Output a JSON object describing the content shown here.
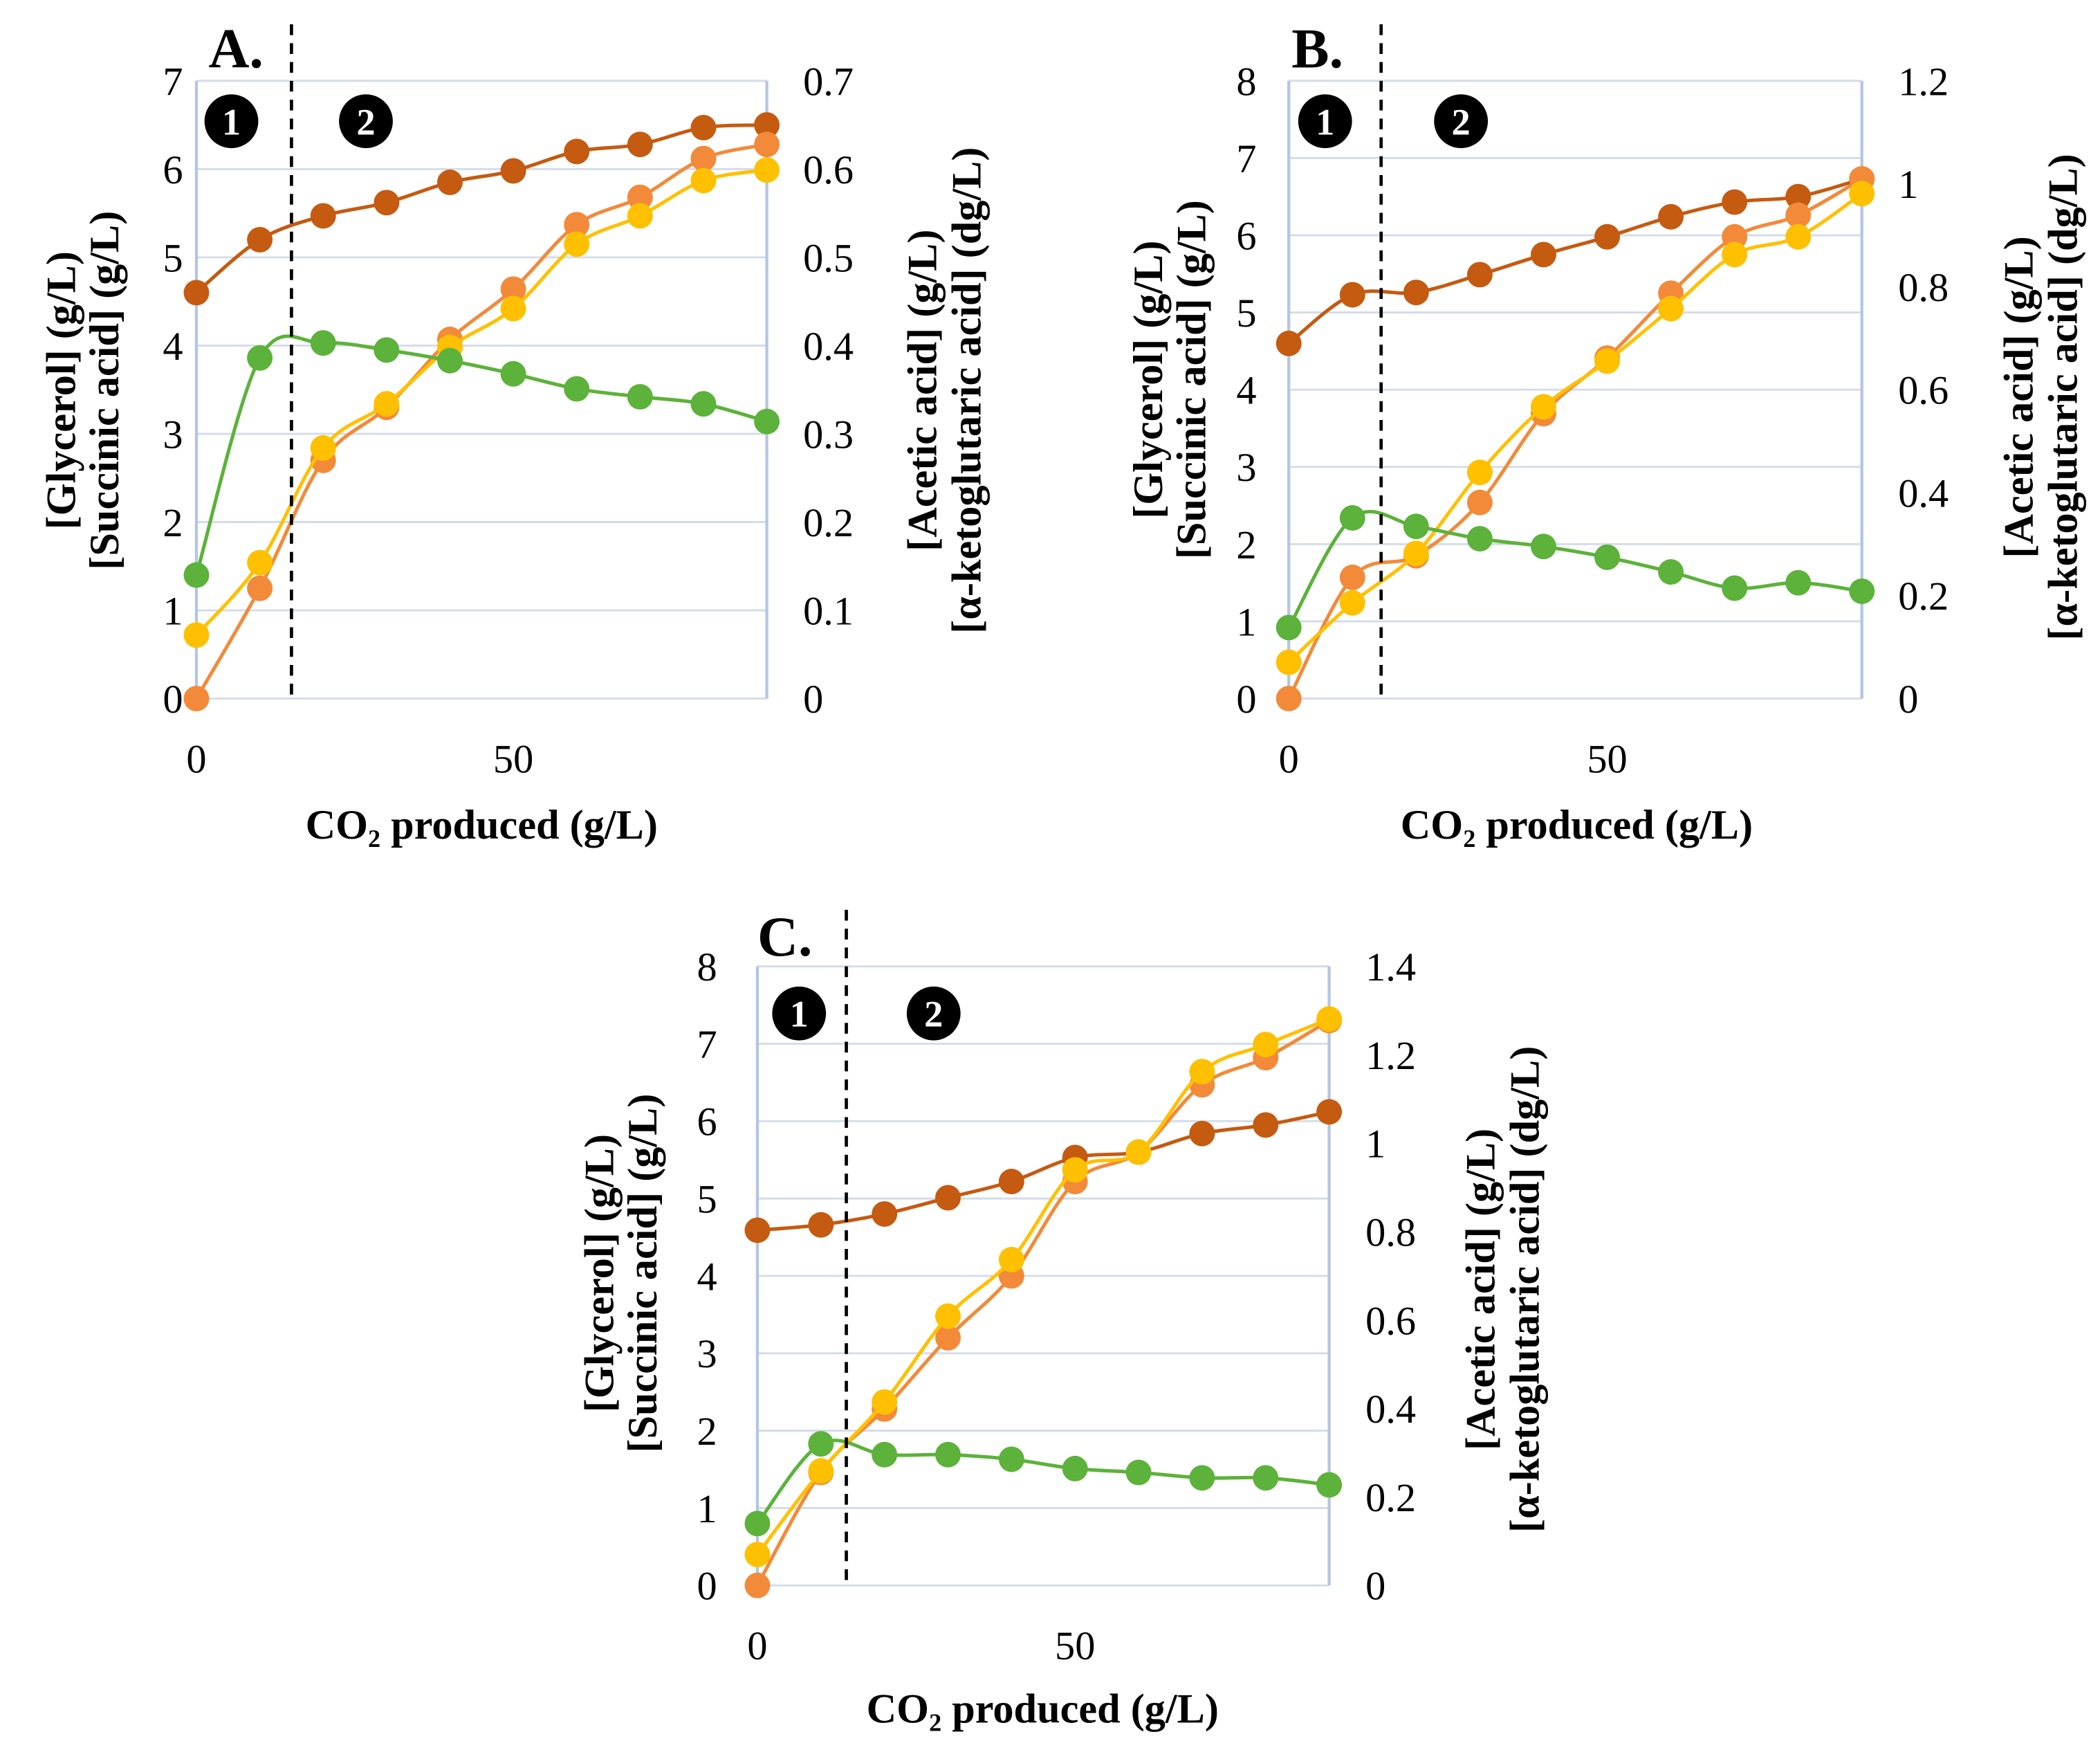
{
  "chart_data": [
    {
      "type": "line",
      "title": "A.",
      "x": [
        0,
        10,
        20,
        30,
        40,
        50,
        60,
        70,
        80,
        90
      ],
      "xlim": [
        0,
        90
      ],
      "xticks": [
        0,
        50
      ],
      "xlabel": "CO₂ produced (g/L)",
      "ylim": [
        0,
        7
      ],
      "yticks": [
        0,
        1,
        2,
        3,
        4,
        5,
        6,
        7
      ],
      "ylabel": [
        "[Glycerol] (g/L)",
        "[Succinic acid] (g/L)"
      ],
      "y2lim": [
        0,
        0.7
      ],
      "y2ticks": [
        0,
        0.1,
        0.2,
        0.3,
        0.4,
        0.5,
        0.6,
        0.7
      ],
      "y2label": [
        "[Acetic acid] (g/L)",
        "[α-ketoglutaric acid] (dg/L)"
      ],
      "phase_boundary_x": 15,
      "phase_labels": [
        "1",
        "2"
      ],
      "series": [
        {
          "color": "#c55a11",
          "values": [
            4.6,
            5.2,
            5.47,
            5.62,
            5.85,
            5.98,
            6.2,
            6.28,
            6.47,
            6.5
          ]
        },
        {
          "color": "#f28a3a",
          "values": [
            0,
            1.25,
            2.7,
            3.3,
            4.07,
            4.64,
            5.37,
            5.68,
            6.12,
            6.28
          ]
        },
        {
          "color": "#ffc000",
          "values": [
            0.72,
            1.54,
            2.84,
            3.34,
            3.98,
            4.42,
            5.15,
            5.47,
            5.87,
            5.99
          ]
        },
        {
          "color": "#5cb23a",
          "values": [
            1.4,
            3.86,
            4.03,
            3.95,
            3.83,
            3.68,
            3.51,
            3.42,
            3.34,
            3.14
          ]
        }
      ]
    },
    {
      "type": "line",
      "title": "B.",
      "x": [
        0,
        10,
        20,
        30,
        40,
        50,
        60,
        70,
        80,
        90
      ],
      "xlim": [
        0,
        90
      ],
      "xticks": [
        0,
        50
      ],
      "xlabel": "CO₂ produced (g/L)",
      "ylim": [
        0,
        8
      ],
      "yticks": [
        0,
        1,
        2,
        3,
        4,
        5,
        6,
        7,
        8
      ],
      "ylabel": [
        "[Glycerol] (g/L)",
        "[Succinic acid] (g/L)"
      ],
      "y2lim": [
        0,
        1.2
      ],
      "y2ticks": [
        0,
        0.2,
        0.4,
        0.6,
        0.8,
        1,
        1.2
      ],
      "y2label": [
        "[Acetic acid] (g/L)",
        "[α-ketoglutaric acid] (dg/L)"
      ],
      "phase_boundary_x": 14.5,
      "phase_labels": [
        "1",
        "2"
      ],
      "series": [
        {
          "color": "#c55a11",
          "values": [
            4.6,
            5.23,
            5.26,
            5.49,
            5.75,
            5.98,
            6.24,
            6.43,
            6.5,
            6.73
          ]
        },
        {
          "color": "#f28a3a",
          "values": [
            0,
            1.57,
            1.85,
            2.54,
            3.69,
            4.41,
            5.25,
            5.98,
            6.26,
            6.73
          ]
        },
        {
          "color": "#ffc000",
          "values": [
            0.47,
            1.24,
            1.88,
            2.93,
            3.78,
            4.37,
            5.05,
            5.75,
            5.98,
            6.54
          ]
        },
        {
          "color": "#5cb23a",
          "values": [
            0.92,
            2.34,
            2.23,
            2.07,
            1.97,
            1.83,
            1.64,
            1.43,
            1.5,
            1.39
          ]
        }
      ]
    },
    {
      "type": "line",
      "title": "C.",
      "x": [
        0,
        10,
        20,
        30,
        40,
        50,
        60,
        70,
        80,
        90
      ],
      "xlim": [
        0,
        90
      ],
      "xticks": [
        0,
        50
      ],
      "xlabel": "CO₂ produced (g/L)",
      "ylim": [
        0,
        8
      ],
      "yticks": [
        0,
        1,
        2,
        3,
        4,
        5,
        6,
        7,
        8
      ],
      "ylabel": [
        "[Glycerol] (g/L)",
        "[Succinic acid] (g/L)"
      ],
      "y2lim": [
        0,
        1.4
      ],
      "y2ticks": [
        0,
        0.2,
        0.4,
        0.6,
        0.8,
        1,
        1.2,
        1.4
      ],
      "y2label": [
        "[Acetic acid] (g/L)",
        "[α-ketoglutaric acid] (dg/L)"
      ],
      "phase_boundary_x": 14,
      "phase_labels": [
        "1",
        "2"
      ],
      "series": [
        {
          "color": "#c55a11",
          "values": [
            4.59,
            4.66,
            4.8,
            5.01,
            5.22,
            5.53,
            5.6,
            5.84,
            5.95,
            6.12
          ]
        },
        {
          "color": "#f28a3a",
          "values": [
            0,
            1.46,
            2.28,
            3.2,
            4.0,
            5.22,
            5.6,
            6.47,
            6.82,
            7.3
          ]
        },
        {
          "color": "#ffc000",
          "values": [
            0.4,
            1.48,
            2.37,
            3.48,
            4.21,
            5.37,
            5.6,
            6.64,
            6.99,
            7.32
          ]
        },
        {
          "color": "#5cb23a",
          "values": [
            0.8,
            1.83,
            1.69,
            1.69,
            1.63,
            1.51,
            1.46,
            1.39,
            1.39,
            1.3
          ]
        }
      ]
    }
  ]
}
